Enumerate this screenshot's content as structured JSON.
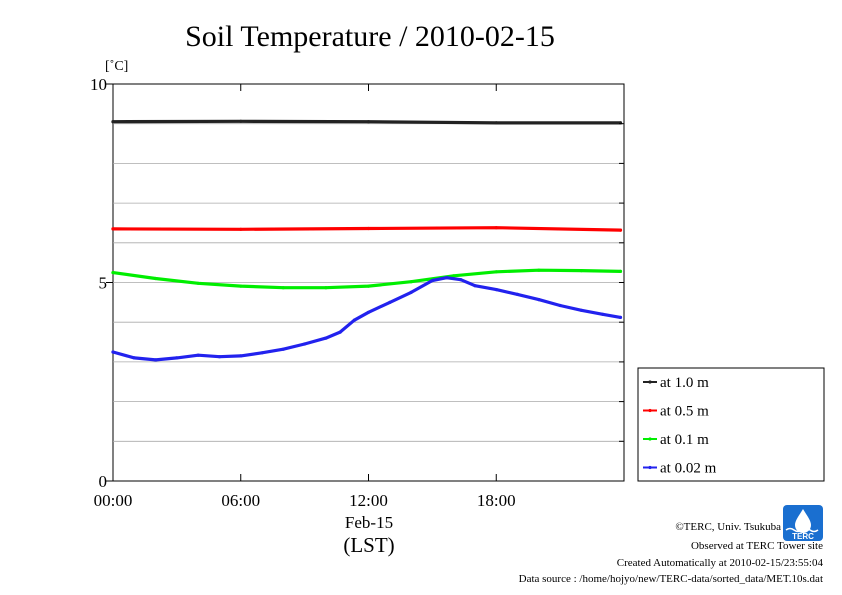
{
  "chart_data": {
    "type": "line",
    "title": "Soil Temperature / 2010-02-15",
    "ylabel": "[˚C]",
    "xlabel": "(LST)",
    "date_label": "Feb-15",
    "ylim": [
      0,
      10
    ],
    "xlim": [
      "00:00",
      "24:00"
    ],
    "y_ticks": [
      "0",
      "5",
      "10"
    ],
    "x_ticks": [
      "00:00",
      "06:00",
      "12:00",
      "18:00"
    ],
    "grid": true,
    "legend_position": "right",
    "series": [
      {
        "name": "at 1.0 m",
        "color": "#222222",
        "points": [
          [
            "00:00",
            9.05
          ],
          [
            "06:00",
            9.06
          ],
          [
            "12:00",
            9.05
          ],
          [
            "18:00",
            9.02
          ],
          [
            "23:50",
            9.02
          ]
        ]
      },
      {
        "name": "at 0.5 m",
        "color": "#ff0000",
        "points": [
          [
            "00:00",
            6.35
          ],
          [
            "06:00",
            6.34
          ],
          [
            "12:00",
            6.36
          ],
          [
            "18:00",
            6.38
          ],
          [
            "23:50",
            6.32
          ]
        ]
      },
      {
        "name": "at 0.1 m",
        "color": "#00ee00",
        "points": [
          [
            "00:00",
            5.25
          ],
          [
            "02:00",
            5.1
          ],
          [
            "04:00",
            4.98
          ],
          [
            "06:00",
            4.91
          ],
          [
            "08:00",
            4.87
          ],
          [
            "10:00",
            4.87
          ],
          [
            "12:00",
            4.91
          ],
          [
            "14:00",
            5.02
          ],
          [
            "16:00",
            5.17
          ],
          [
            "18:00",
            5.27
          ],
          [
            "20:00",
            5.31
          ],
          [
            "22:00",
            5.3
          ],
          [
            "23:50",
            5.28
          ]
        ]
      },
      {
        "name": "at 0.02 m",
        "color": "#2222ee",
        "points": [
          [
            "00:00",
            3.25
          ],
          [
            "01:00",
            3.1
          ],
          [
            "02:00",
            3.05
          ],
          [
            "03:00",
            3.1
          ],
          [
            "04:00",
            3.17
          ],
          [
            "05:00",
            3.13
          ],
          [
            "06:00",
            3.15
          ],
          [
            "07:00",
            3.23
          ],
          [
            "08:00",
            3.32
          ],
          [
            "09:00",
            3.45
          ],
          [
            "10:00",
            3.6
          ],
          [
            "10:40",
            3.75
          ],
          [
            "11:20",
            4.05
          ],
          [
            "12:00",
            4.25
          ],
          [
            "13:00",
            4.5
          ],
          [
            "14:00",
            4.75
          ],
          [
            "15:00",
            5.05
          ],
          [
            "15:40",
            5.12
          ],
          [
            "16:20",
            5.07
          ],
          [
            "17:00",
            4.92
          ],
          [
            "18:00",
            4.82
          ],
          [
            "19:00",
            4.7
          ],
          [
            "20:00",
            4.57
          ],
          [
            "21:00",
            4.42
          ],
          [
            "22:00",
            4.3
          ],
          [
            "23:00",
            4.2
          ],
          [
            "23:50",
            4.12
          ]
        ]
      }
    ]
  },
  "footer": {
    "copyright": "©TERC, Univ. Tsukuba",
    "observed": "Observed at TERC Tower site",
    "created": "Created Automatically at 2010-02-15/23:55:04",
    "source": "Data source : /home/hojyo/new/TERC-data/sorted_data/MET.10s.dat",
    "logo_text": "TERC"
  }
}
